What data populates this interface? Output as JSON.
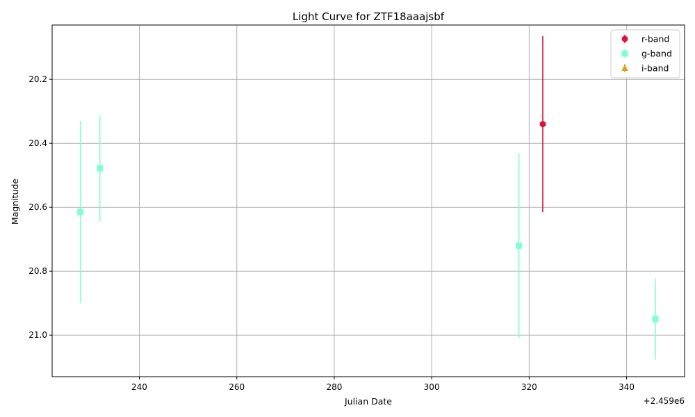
{
  "chart_data": {
    "type": "scatter",
    "title": "Light Curve for ZTF18aaajsbf",
    "xlabel": "Julian Date",
    "ylabel": "Magnitude",
    "x_offset_label": "+2.459e6",
    "xlim": [
      222.1,
      351.9
    ],
    "ylim": [
      21.13,
      20.03
    ],
    "y_inverted": true,
    "grid": true,
    "legend_position": "top-right",
    "x_ticks": [
      240,
      260,
      280,
      300,
      320,
      340
    ],
    "y_ticks": [
      20.2,
      20.4,
      20.6,
      20.8,
      21.0
    ],
    "x_tick_labels": [
      "240",
      "260",
      "280",
      "300",
      "320",
      "340"
    ],
    "y_tick_labels": [
      "20.2",
      "20.4",
      "20.6",
      "20.8",
      "21.0"
    ],
    "series": [
      {
        "name": "r-band",
        "color": "#dc143c",
        "marker": "circle",
        "points": [
          {
            "x": 322.8,
            "y": 20.34,
            "err": 0.275
          }
        ]
      },
      {
        "name": "g-band",
        "color": "#7fffd4",
        "marker": "square",
        "points": [
          {
            "x": 227.9,
            "y": 20.615,
            "err": 0.285
          },
          {
            "x": 231.9,
            "y": 20.478,
            "err": 0.165
          },
          {
            "x": 317.9,
            "y": 20.72,
            "err": 0.29
          },
          {
            "x": 345.9,
            "y": 20.95,
            "err": 0.127
          }
        ]
      },
      {
        "name": "i-band",
        "color": "#daa520",
        "marker": "triangle",
        "points": []
      }
    ]
  }
}
